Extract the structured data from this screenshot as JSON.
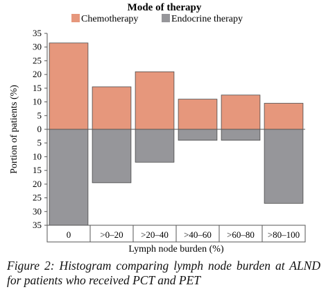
{
  "chart_data": {
    "type": "bar",
    "legend_title": "Mode of therapy",
    "legend_position": "top",
    "categories": [
      "0",
      ">0–20",
      ">20–40",
      ">40–60",
      ">60–80",
      ">80–100"
    ],
    "series": [
      {
        "name": "Chemotherapy",
        "direction": "up",
        "color": "#e6977c",
        "values": [
          31.5,
          15.5,
          21,
          11,
          12.5,
          9.5
        ]
      },
      {
        "name": "Endocrine therapy",
        "direction": "down",
        "color": "#96969a",
        "values": [
          35,
          19.5,
          12,
          4,
          4,
          27
        ]
      }
    ],
    "xlabel": "Lymph node burden (%)",
    "ylabel": "Portion of patients (%)",
    "yticks": [
      "35",
      "30",
      "25",
      "20",
      "15",
      "10",
      "5",
      "0",
      "5",
      "10",
      "15",
      "20",
      "25",
      "30",
      "35"
    ],
    "ylim": [
      -35,
      35
    ],
    "grid": false
  },
  "caption": "Figure 2: Histogram comparing lymph node burden at ALND for patients who received PCT and PET"
}
